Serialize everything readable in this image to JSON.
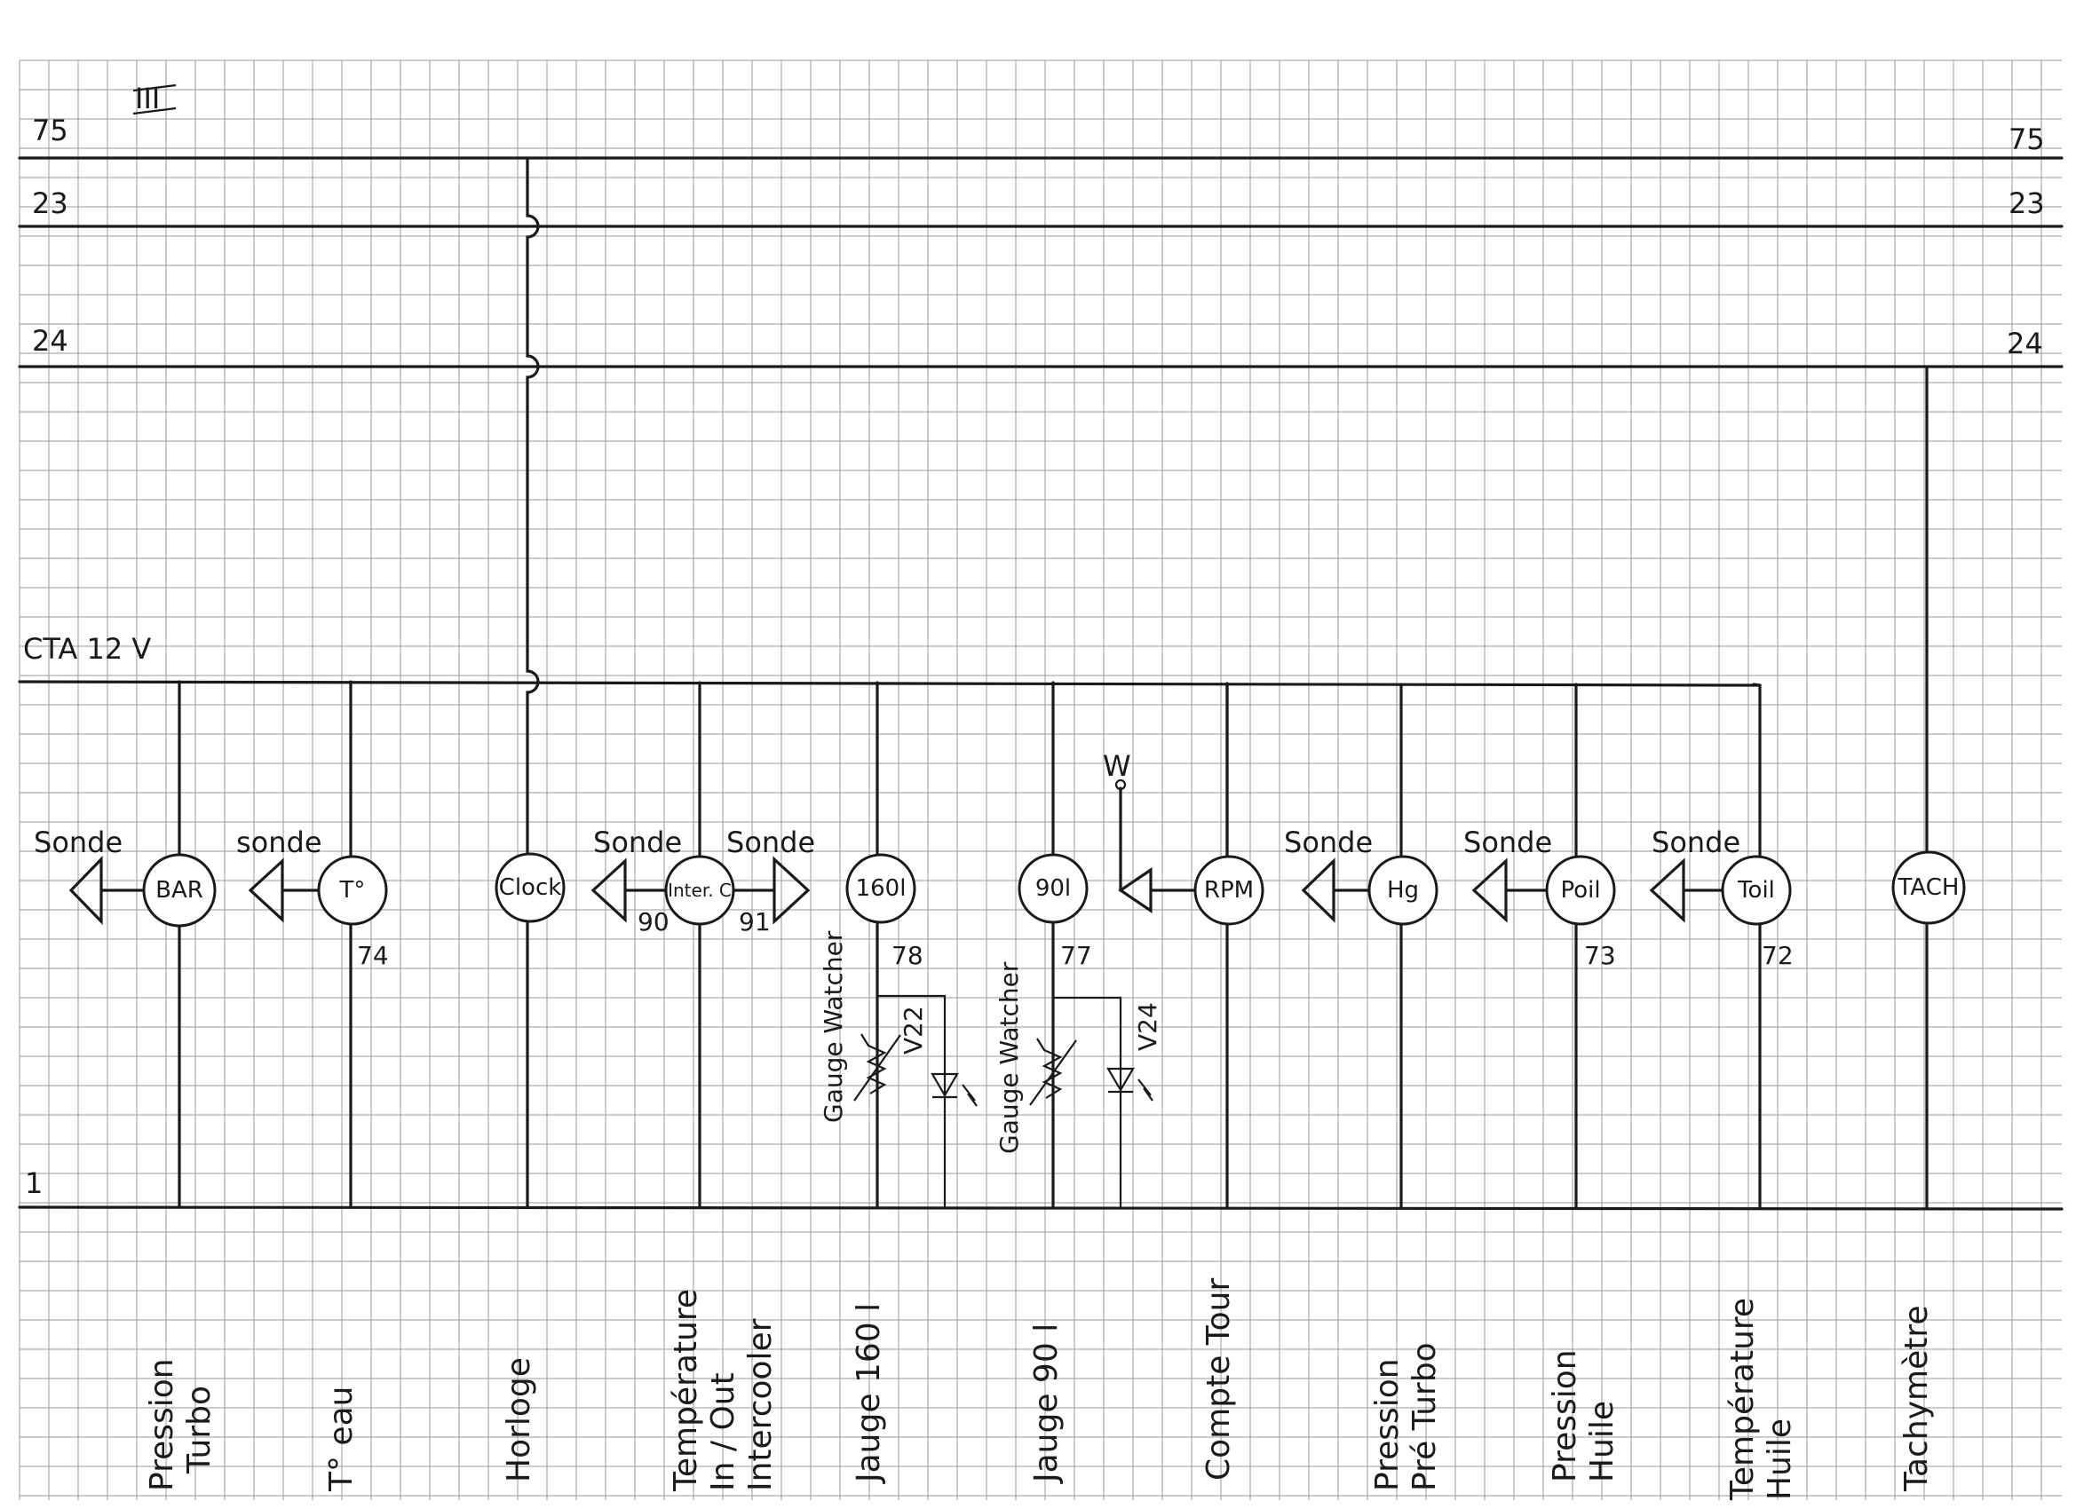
{
  "sheet": {
    "number": "III",
    "colors": {
      "ink": "#1a1a1a",
      "grid": "#9a9a9a",
      "paper": "#ffffff"
    }
  },
  "rails": [
    {
      "id": "r75",
      "label_left": "75",
      "label_right": "75"
    },
    {
      "id": "r23",
      "label_left": "23",
      "label_right": "23"
    },
    {
      "id": "r24",
      "label_left": "24",
      "label_right": "24"
    },
    {
      "id": "cta",
      "label_left": "CTA 12 V",
      "label_right": ""
    },
    {
      "id": "ground",
      "label_left": "1",
      "label_right": ""
    }
  ],
  "w_label": "W",
  "gauges": [
    {
      "id": "bar",
      "label": "BAR",
      "sonde": "Sonde",
      "wire_no": "",
      "caption": [
        "Pression",
        "Turbo"
      ]
    },
    {
      "id": "teau",
      "label": "T°",
      "sonde": "sonde",
      "wire_no": "74",
      "caption": [
        "T° eau"
      ]
    },
    {
      "id": "clock",
      "label": "Clock",
      "sonde": "",
      "wire_no": "",
      "caption": [
        "Horloge"
      ]
    },
    {
      "id": "inter",
      "label": "Inter. C",
      "sonde": "Sonde",
      "sonde_right": "Sonde",
      "wire_left": "90",
      "wire_right": "91",
      "caption": [
        "Température",
        "In / Out",
        "Intercooler"
      ]
    },
    {
      "id": "g160",
      "label": "160l",
      "sonde": "",
      "wire_no": "78",
      "side_label": "Gauge Watcher",
      "relay": "V22",
      "caption": [
        "Jauge 160 l"
      ]
    },
    {
      "id": "g90",
      "label": "90l",
      "sonde": "",
      "wire_no": "77",
      "side_label": "Gauge Watcher",
      "relay": "V24",
      "caption": [
        "Jauge 90 l"
      ]
    },
    {
      "id": "rpm",
      "label": "RPM",
      "sonde": "",
      "wire_no": "",
      "caption": [
        "Compte Tour"
      ]
    },
    {
      "id": "hg",
      "label": "Hg",
      "sonde": "Sonde",
      "wire_no": "",
      "caption": [
        "Pression",
        "Pré Turbo"
      ]
    },
    {
      "id": "poil",
      "label": "Poil",
      "sonde": "Sonde",
      "wire_no": "73",
      "caption": [
        "Pression",
        "Huile"
      ]
    },
    {
      "id": "toil",
      "label": "Toil",
      "sonde": "Sonde",
      "wire_no": "72",
      "caption": [
        "Température",
        "Huile"
      ]
    },
    {
      "id": "tach",
      "label": "TACH",
      "sonde": "",
      "wire_no": "",
      "caption": [
        "Tachymètre"
      ]
    }
  ]
}
